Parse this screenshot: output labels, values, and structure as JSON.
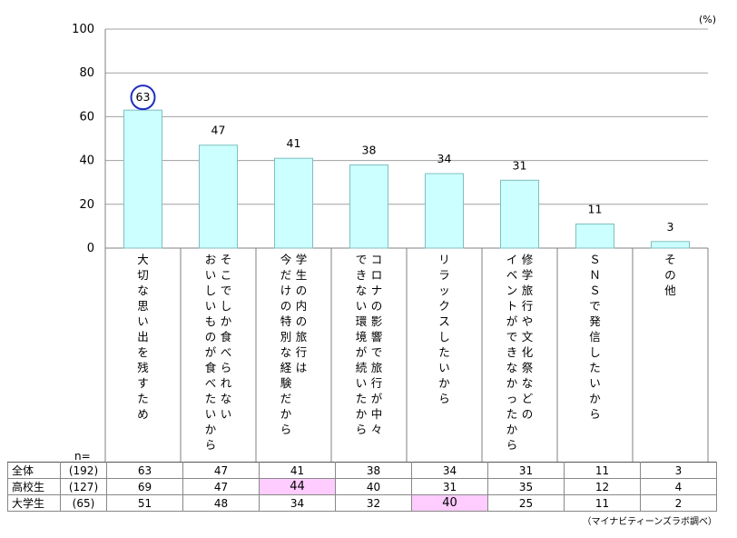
{
  "chart_data": {
    "type": "bar",
    "unit": "(%)",
    "ylim": [
      0,
      100
    ],
    "yticks": [
      0,
      20,
      40,
      60,
      80,
      100
    ],
    "grid": true,
    "categories": [
      [
        "大",
        "切",
        "な",
        "思",
        "い",
        "出",
        "を",
        "残",
        "す",
        "た",
        "め"
      ],
      [
        "そ",
        "こ",
        "で",
        "し",
        "か",
        "食",
        "べ",
        "ら",
        "れ",
        "な",
        "い",
        "|",
        "お",
        "い",
        "し",
        "い",
        "も",
        "の",
        "が",
        "食",
        "べ",
        "た",
        "い",
        "か",
        "ら"
      ],
      [
        "学",
        "生",
        "の",
        "内",
        "の",
        "旅",
        "行",
        "は",
        "|",
        "今",
        "だ",
        "け",
        "の",
        "特",
        "別",
        "な",
        "経",
        "験",
        "だ",
        "か",
        "ら"
      ],
      [
        "コ",
        "ロ",
        "ナ",
        "の",
        "影",
        "響",
        "で",
        "旅",
        "行",
        "が",
        "中",
        "々",
        "|",
        "で",
        "き",
        "な",
        "い",
        "環",
        "境",
        "が",
        "続",
        "い",
        "た",
        "か",
        "ら"
      ],
      [
        "リ",
        "ラ",
        "ッ",
        "ク",
        "ス",
        "し",
        "た",
        "い",
        "か",
        "ら"
      ],
      [
        "修",
        "学",
        "旅",
        "行",
        "や",
        "文",
        "化",
        "祭",
        "な",
        "ど",
        "の",
        "|",
        "イ",
        "ベ",
        "ン",
        "ト",
        "が",
        "で",
        "き",
        "な",
        "か",
        "っ",
        "た",
        "か",
        "ら"
      ],
      [
        "Ｓ",
        "Ｎ",
        "Ｓ",
        "で",
        "発",
        "信",
        "し",
        "た",
        "い",
        "か",
        "ら"
      ],
      [
        "そ",
        "の",
        "他"
      ]
    ],
    "values": [
      63,
      47,
      41,
      38,
      34,
      31,
      11,
      3
    ],
    "highlight_index": 0,
    "bar_color": "#ccffff",
    "bar_border": "#7fbfbf",
    "highlight_circle_color": "#1f2fbf"
  },
  "table": {
    "n_label": "n=",
    "rows": [
      {
        "group": "全体",
        "n": "(192)",
        "values": [
          "63",
          "47",
          "41",
          "38",
          "34",
          "31",
          "11",
          "3"
        ],
        "highlight": []
      },
      {
        "group": "高校生",
        "n": "(127)",
        "values": [
          "69",
          "47",
          "44",
          "40",
          "31",
          "35",
          "12",
          "4"
        ],
        "highlight": [
          2
        ]
      },
      {
        "group": "大学生",
        "n": "(65)",
        "values": [
          "51",
          "48",
          "34",
          "32",
          "40",
          "25",
          "11",
          "2"
        ],
        "highlight": [
          4
        ]
      }
    ],
    "highlight_color": "#ffccff"
  },
  "source": "（マイナビティーンズラボ調べ）"
}
